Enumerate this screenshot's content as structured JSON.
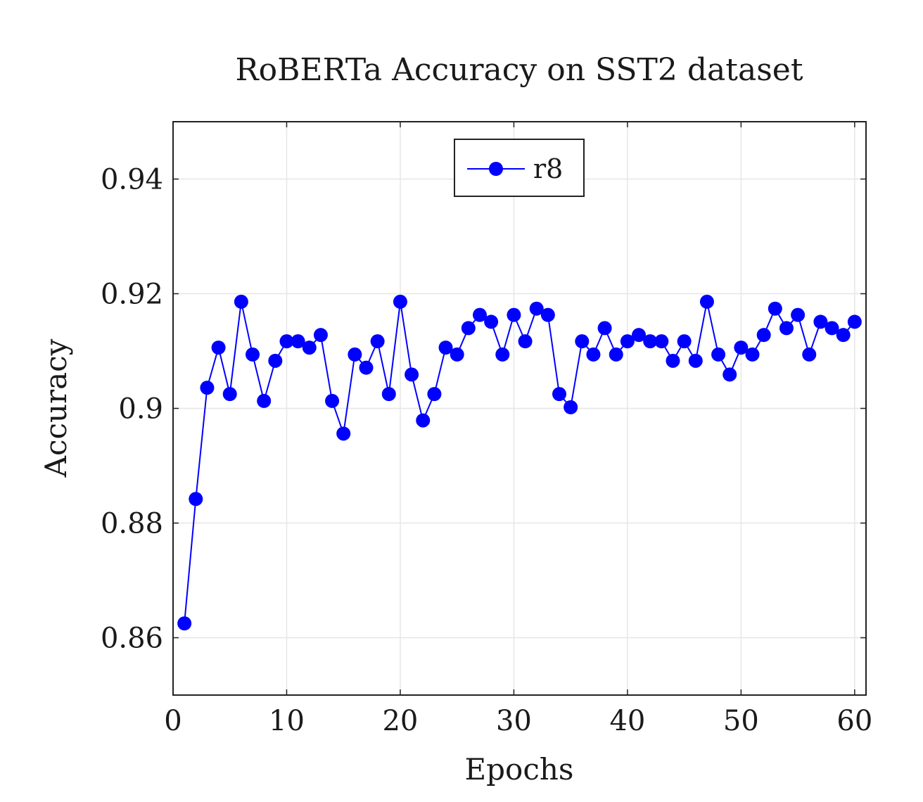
{
  "chart_data": {
    "type": "line",
    "title": "RoBERTa Accuracy on SST2 dataset",
    "xlabel": "Epochs",
    "ylabel": "Accuracy",
    "xlim": [
      0,
      61
    ],
    "ylim": [
      0.85,
      0.95
    ],
    "xticks": [
      0,
      10,
      20,
      30,
      40,
      50,
      60
    ],
    "xtick_labels": [
      "0",
      "10",
      "20",
      "30",
      "40",
      "50",
      "60"
    ],
    "yticks": [
      0.86,
      0.88,
      0.9,
      0.92,
      0.94
    ],
    "ytick_labels": [
      "0.86",
      "0.88",
      "0.9",
      "0.92",
      "0.94"
    ],
    "grid": true,
    "legend": {
      "position": "top-center",
      "entries": [
        "r8"
      ]
    },
    "series": [
      {
        "name": "r8",
        "color": "#0000ff",
        "marker": "circle",
        "x": [
          1,
          2,
          3,
          4,
          5,
          6,
          7,
          8,
          9,
          10,
          11,
          12,
          13,
          14,
          15,
          16,
          17,
          18,
          19,
          20,
          21,
          22,
          23,
          24,
          25,
          26,
          27,
          28,
          29,
          30,
          31,
          32,
          33,
          34,
          35,
          36,
          37,
          38,
          39,
          40,
          41,
          42,
          43,
          44,
          45,
          46,
          47,
          48,
          49,
          50,
          51,
          52,
          53,
          54,
          55,
          56,
          57,
          58,
          59,
          60
        ],
        "y": [
          0.8625,
          0.8842,
          0.9036,
          0.9106,
          0.9025,
          0.9186,
          0.9094,
          0.9013,
          0.9083,
          0.9117,
          0.9117,
          0.9106,
          0.9128,
          0.9013,
          0.8956,
          0.9094,
          0.9071,
          0.9117,
          0.9025,
          0.9186,
          0.9059,
          0.8979,
          0.9025,
          0.9106,
          0.9094,
          0.914,
          0.9163,
          0.9151,
          0.9094,
          0.9163,
          0.9117,
          0.9174,
          0.9163,
          0.9025,
          0.9002,
          0.9117,
          0.9094,
          0.914,
          0.9094,
          0.9117,
          0.9128,
          0.9117,
          0.9117,
          0.9083,
          0.9117,
          0.9083,
          0.9186,
          0.9094,
          0.9059,
          0.9106,
          0.9094,
          0.9128,
          0.9174,
          0.914,
          0.9163,
          0.9094,
          0.9151,
          0.914,
          0.9128,
          0.9151
        ]
      }
    ]
  }
}
